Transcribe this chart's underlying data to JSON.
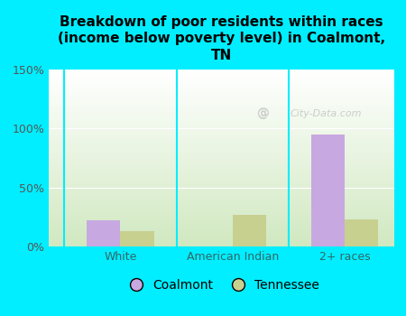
{
  "title": "Breakdown of poor residents within races\n(income below poverty level) in Coalmont,\nTN",
  "categories": [
    "White",
    "American Indian",
    "2+ races"
  ],
  "coalmont_values": [
    22,
    0,
    95
  ],
  "tennessee_values": [
    13,
    27,
    23
  ],
  "coalmont_color": "#c8a8e0",
  "tennessee_color": "#c8d090",
  "background_color": "#00eeff",
  "plot_bg_top": "#ffffff",
  "plot_bg_bottom": "#d0e8c0",
  "ylim": [
    0,
    150
  ],
  "yticks": [
    0,
    50,
    100,
    150
  ],
  "ytick_labels": [
    "0%",
    "50%",
    "100%",
    "150%"
  ],
  "bar_width": 0.3,
  "legend_labels": [
    "Coalmont",
    "Tennessee"
  ],
  "watermark": "City-Data.com",
  "title_fontsize": 11,
  "tick_fontsize": 9,
  "legend_fontsize": 10,
  "tick_color": "#555555",
  "xtick_color": "#336666"
}
